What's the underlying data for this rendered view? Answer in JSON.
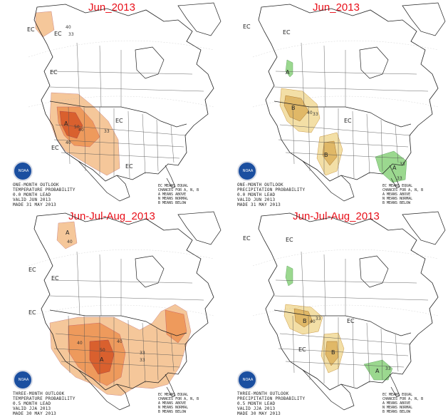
{
  "panels": [
    {
      "title": "Jun_2013",
      "caption": [
        "ONE-MONTH OUTLOOK",
        "TEMPERATURE PROBABILITY",
        "0.0 MONTH LEAD",
        "VALID JUN 2013",
        "MADE 31 MAY 2013"
      ],
      "legend": [
        "EC MEANS EQUAL",
        "CHANCES FOR A, N, B",
        "A MEANS ABOVE",
        "N MEANS NORMAL",
        "B MEANS BELOW"
      ],
      "logo_text": "NOAA",
      "labels": [
        "EC",
        "EC",
        "40",
        "33",
        "EC",
        "A",
        "50",
        "40",
        "33",
        "EC",
        "EC",
        "40",
        "EC"
      ]
    },
    {
      "title": "Jun_2013",
      "caption": [
        "ONE-MONTH OUTLOOK",
        "PRECIPITATION PROBABILITY",
        "0.0 MONTH LEAD",
        "VALID JUN 2013",
        "MADE 31 MAY 2013"
      ],
      "legend": [
        "EC MEANS EQUAL",
        "CHANCES FOR A, N, B",
        "A MEANS ABOVE",
        "N MEANS NORMAL",
        "B MEANS BELOW"
      ],
      "logo_text": "NOAA",
      "labels": [
        "EC",
        "EC",
        "A",
        "B",
        "40",
        "33",
        "EC",
        "B",
        "A",
        "33",
        "33"
      ]
    },
    {
      "title": "Jun-Jul-Aug_2013",
      "caption": [
        "THREE-MONTH OUTLOOK",
        "TEMPERATURE PROBABILITY",
        "0.5 MONTH LEAD",
        "VALID JJA 2013",
        "MADE 30 MAY 2013"
      ],
      "legend": [
        "EC MEANS EQUAL",
        "CHANCES FOR A, N, B",
        "A MEANS ABOVE",
        "N MEANS NORMAL",
        "B MEANS BELOW"
      ],
      "logo_text": "NOAA",
      "labels": [
        "A",
        "40",
        "EC",
        "EC",
        "EC",
        "40",
        "A",
        "50",
        "40",
        "33",
        "33"
      ]
    },
    {
      "title": "Jun-Jul-Aug_2013",
      "caption": [
        "THREE-MONTH OUTLOOK",
        "PRECIPITATION PROBABILITY",
        "0.5 MONTH LEAD",
        "VALID JJA 2013",
        "MADE 30 MAY 2013"
      ],
      "legend": [
        "EC MEANS EQUAL",
        "CHANCES FOR A, N, B",
        "A MEANS ABOVE",
        "N MEANS NORMAL",
        "B MEANS BELOW"
      ],
      "logo_text": "NOAA",
      "labels": [
        "EC",
        "EC",
        "B",
        "40",
        "33",
        "EC",
        "EC",
        "B",
        "A",
        "33"
      ]
    }
  ],
  "colors": {
    "above_light": "#f5c79a",
    "above_mid": "#ee9a5c",
    "above_dark": "#d9602e",
    "precip_below_light": "#f3dfa6",
    "precip_below_mid": "#e0b867",
    "precip_above": "#9bd88f",
    "title": "#e8101a",
    "logo": "#1b4fa0"
  }
}
